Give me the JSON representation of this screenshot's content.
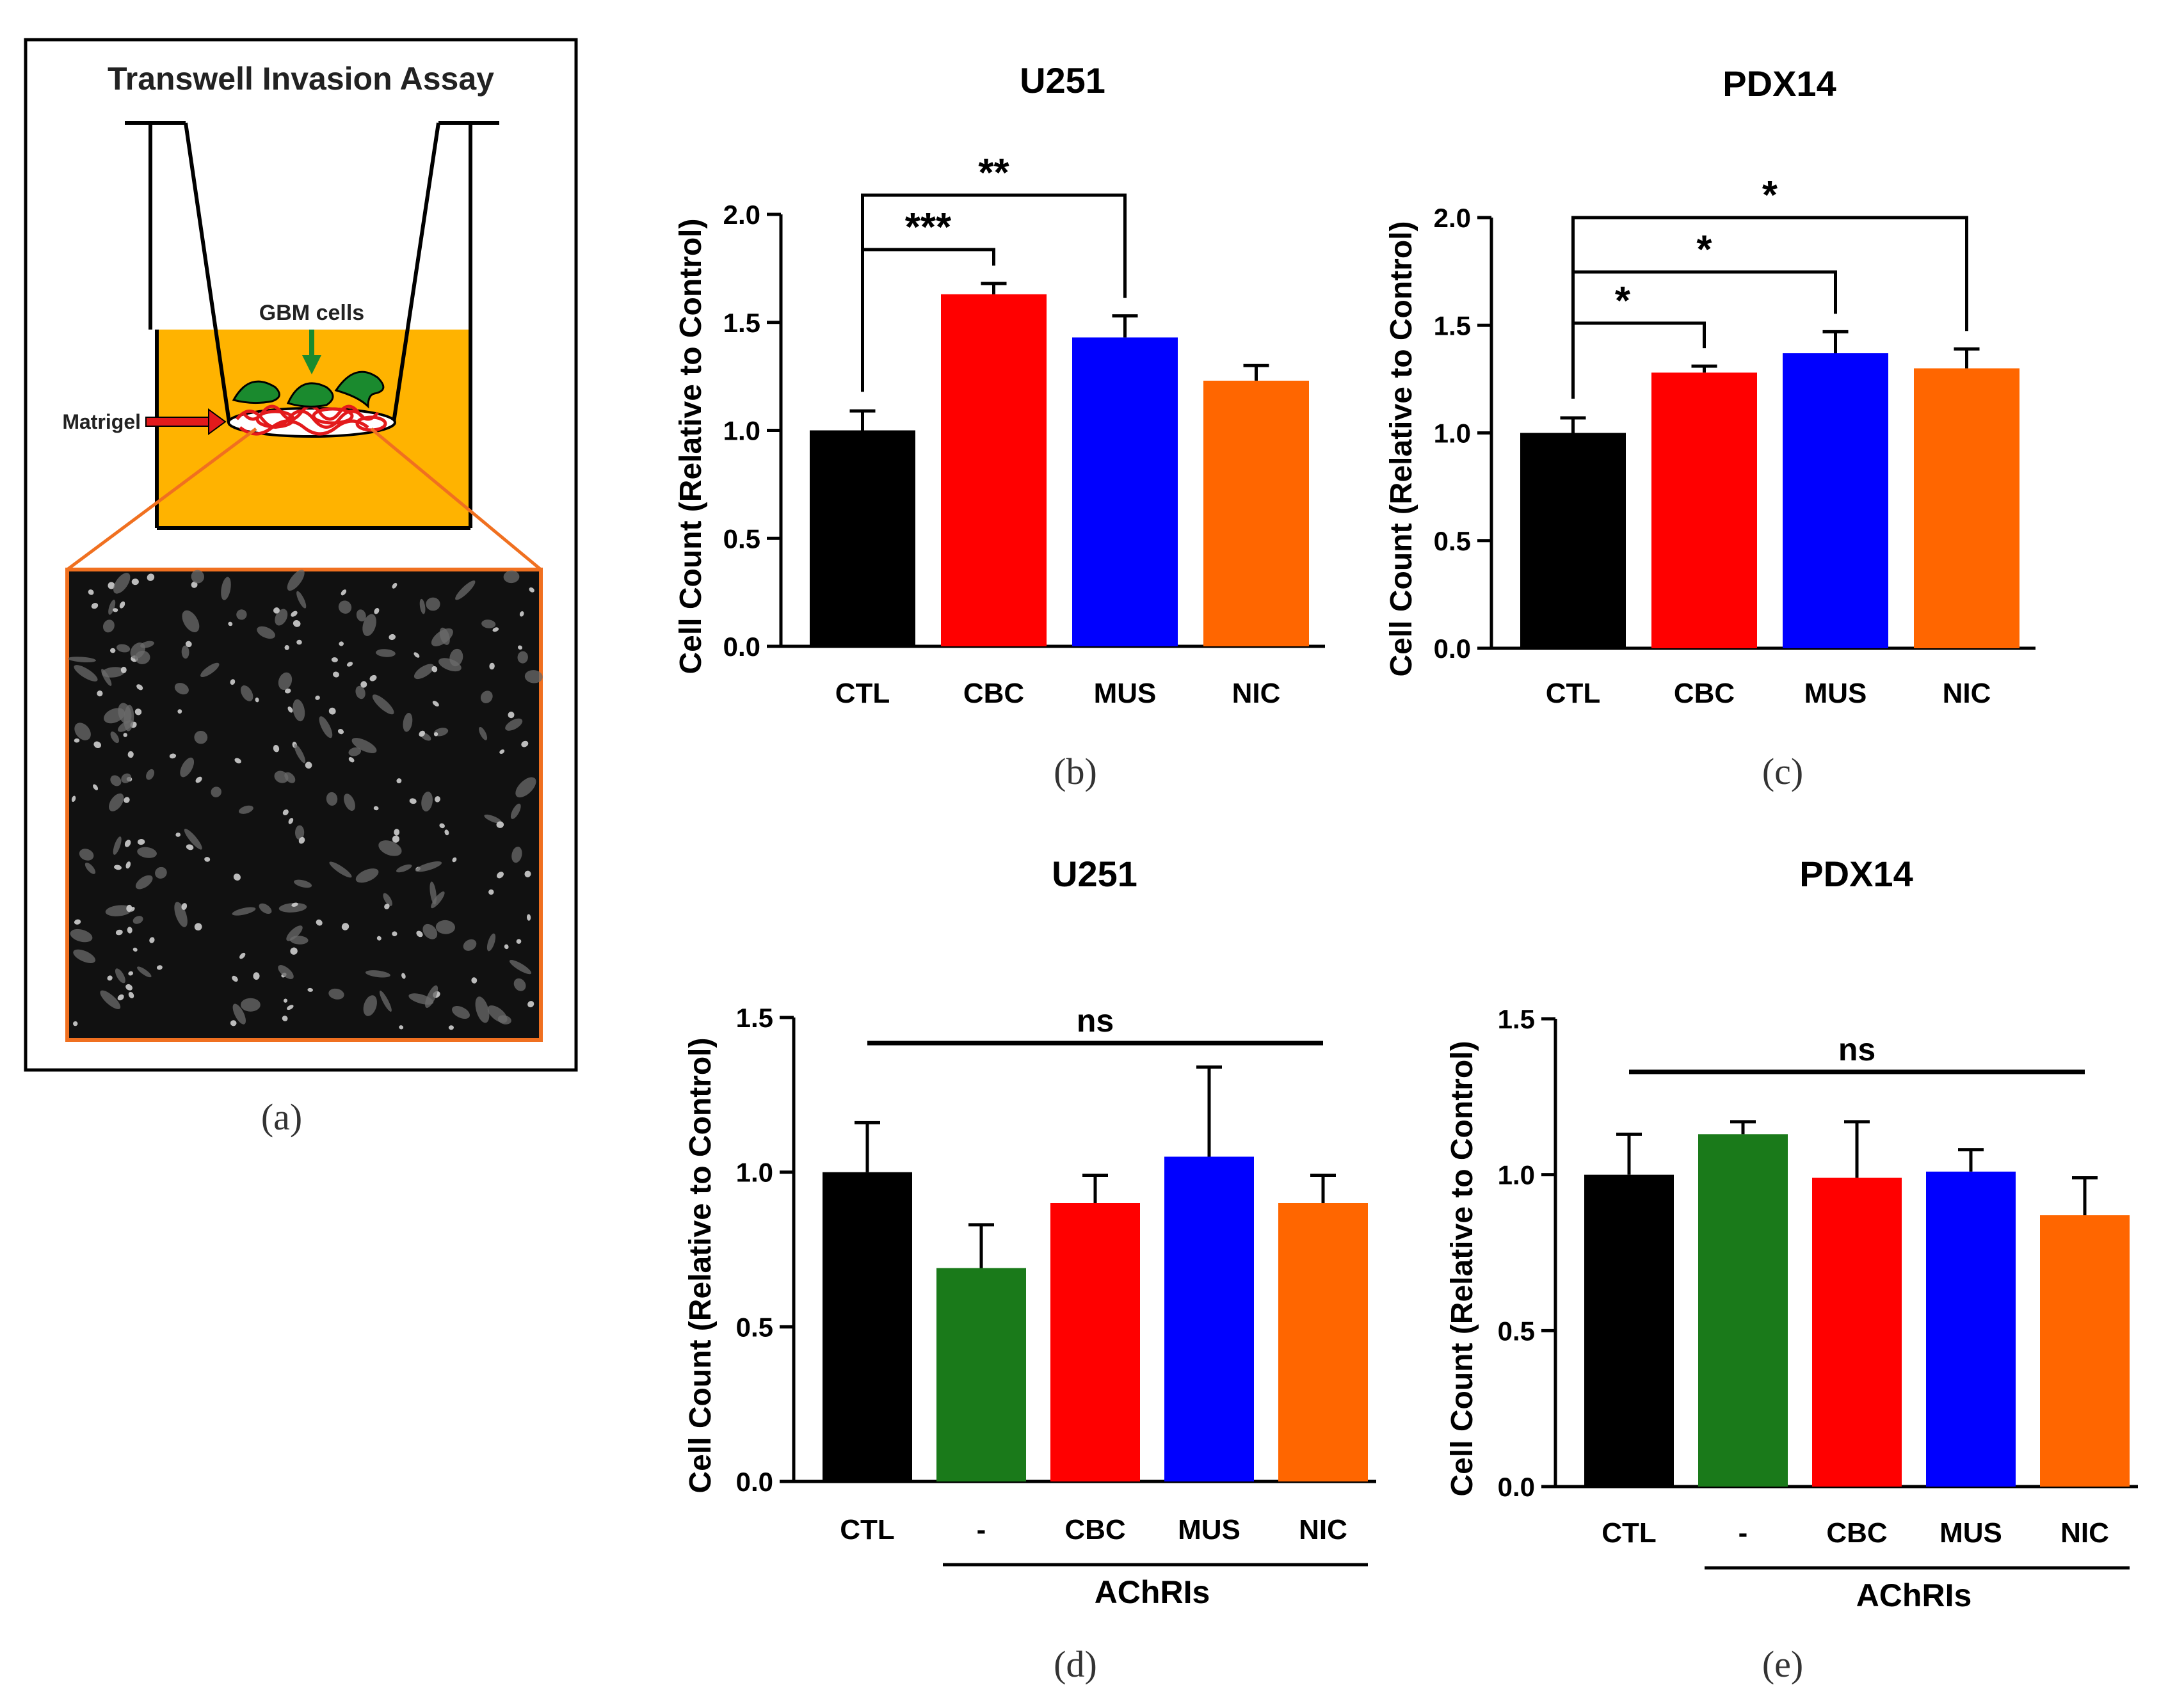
{
  "figure": {
    "panel_a": {
      "title": "Transwell Invasion Assay",
      "labels": {
        "gbm": "GBM cells",
        "matrigel": "Matrigel"
      },
      "caption": "(a)",
      "colors": {
        "medium": "#FFB300",
        "cell": "#1A8A2E",
        "arrow_gbm": "#1A8A2E",
        "arrow_matrigel": "#E31A1C",
        "zoom_border": "#F07020",
        "micrograph": "#111111"
      },
      "icons": [
        "transwell-insert-illustration",
        "microscopy-image"
      ]
    }
  },
  "chart_data": [
    {
      "id": "b",
      "type": "bar",
      "title": "U251",
      "caption": "(b)",
      "ylabel": "Cell Count (Relative to Control)",
      "ylim": [
        0,
        2.0
      ],
      "yticks": [
        "0.0",
        "0.5",
        "1.0",
        "1.5",
        "2.0"
      ],
      "categories": [
        "CTL",
        "CBC",
        "MUS",
        "NIC"
      ],
      "values": [
        1.0,
        1.63,
        1.43,
        1.23
      ],
      "errors": [
        0.09,
        0.05,
        0.1,
        0.07
      ],
      "colors": [
        "#000000",
        "#FF0000",
        "#0000FF",
        "#FF6600"
      ],
      "significance": [
        {
          "from": "CTL",
          "to": "CBC",
          "label": "***"
        },
        {
          "from": "CTL",
          "to": "MUS",
          "label": "**"
        }
      ]
    },
    {
      "id": "c",
      "type": "bar",
      "title": "PDX14",
      "caption": "(c)",
      "ylabel": "Cell Count (Relative to Control)",
      "ylim": [
        0,
        2.0
      ],
      "yticks": [
        "0.0",
        "0.5",
        "1.0",
        "1.5",
        "2.0"
      ],
      "categories": [
        "CTL",
        "CBC",
        "MUS",
        "NIC"
      ],
      "values": [
        1.0,
        1.28,
        1.37,
        1.3
      ],
      "errors": [
        0.07,
        0.03,
        0.1,
        0.09
      ],
      "colors": [
        "#000000",
        "#FF0000",
        "#0000FF",
        "#FF6600"
      ],
      "significance": [
        {
          "from": "CTL",
          "to": "CBC",
          "label": "*"
        },
        {
          "from": "CTL",
          "to": "MUS",
          "label": "*"
        },
        {
          "from": "CTL",
          "to": "NIC",
          "label": "*"
        }
      ]
    },
    {
      "id": "d",
      "type": "bar",
      "title": "U251",
      "caption": "(d)",
      "ylabel": "Cell Count (Relative to Control)",
      "ylim": [
        0,
        1.5
      ],
      "yticks": [
        "0.0",
        "0.5",
        "1.0",
        "1.5"
      ],
      "categories": [
        "CTL",
        "-",
        "CBC",
        "MUS",
        "NIC"
      ],
      "values": [
        1.0,
        0.69,
        0.9,
        1.05,
        0.9
      ],
      "errors": [
        0.16,
        0.14,
        0.09,
        0.29,
        0.09
      ],
      "colors": [
        "#000000",
        "#1A7A1A",
        "#FF0000",
        "#0000FF",
        "#FF6600"
      ],
      "group_label": "AChRIs",
      "ns_label": "ns"
    },
    {
      "id": "e",
      "type": "bar",
      "title": "PDX14",
      "caption": "(e)",
      "ylabel": "Cell Count (Relative to Control)",
      "ylim": [
        0,
        1.5
      ],
      "yticks": [
        "0.0",
        "0.5",
        "1.0",
        "1.5"
      ],
      "categories": [
        "CTL",
        "-",
        "CBC",
        "MUS",
        "NIC"
      ],
      "values": [
        1.0,
        1.13,
        0.99,
        1.01,
        0.87
      ],
      "errors": [
        0.13,
        0.04,
        0.18,
        0.07,
        0.12
      ],
      "colors": [
        "#000000",
        "#1A7A1A",
        "#FF0000",
        "#0000FF",
        "#FF6600"
      ],
      "group_label": "AChRIs",
      "ns_label": "ns"
    }
  ]
}
